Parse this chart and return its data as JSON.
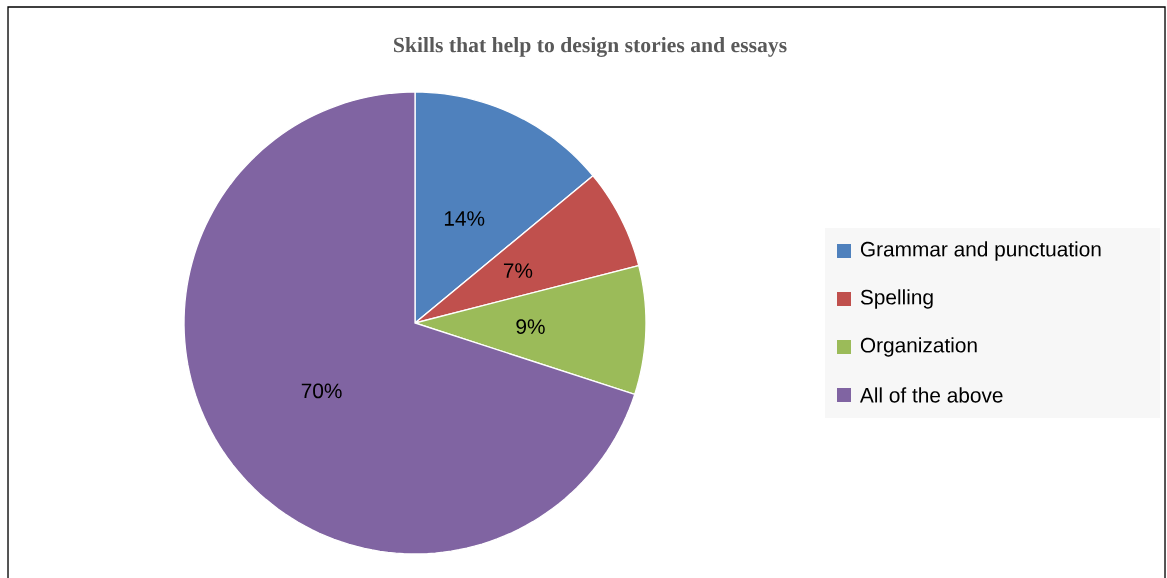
{
  "chart_data": {
    "type": "pie",
    "title": "Skills that help to design stories and essays",
    "categories": [
      "Grammar and punctuation",
      "Spelling",
      "Organization",
      "All of the above"
    ],
    "values": [
      14,
      7,
      9,
      70
    ],
    "colors": [
      "#4f81bd",
      "#c0504d",
      "#9bbb59",
      "#8064a2"
    ],
    "value_labels": [
      "14%",
      "7%",
      "9%",
      "70%"
    ],
    "legend": "right"
  }
}
